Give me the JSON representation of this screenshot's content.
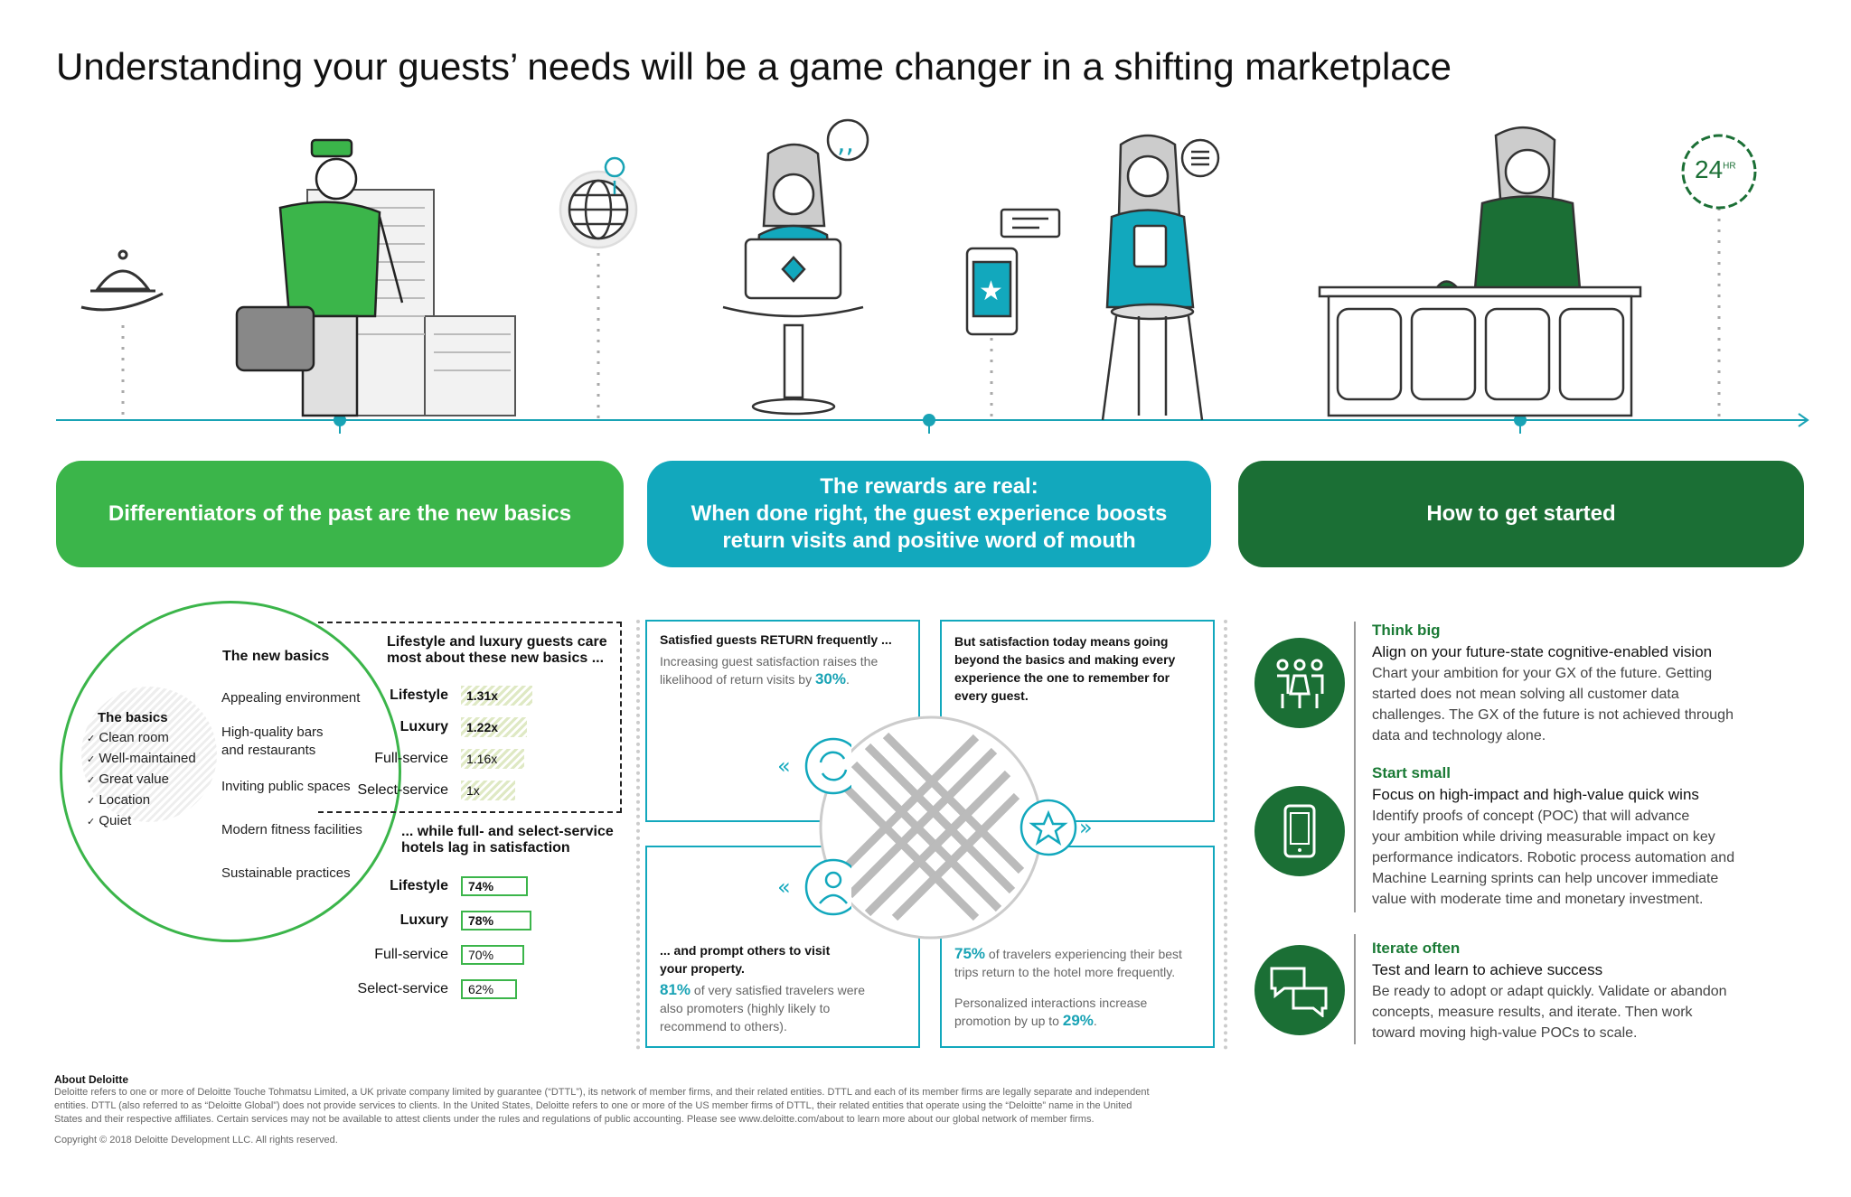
{
  "title": "Understanding your guests’ needs will be a game changer in a shifting marketplace",
  "clock_label": "24",
  "clock_sup": "HR",
  "bands": {
    "left": "Differentiators of the past are the new basics",
    "middle_1": "The rewards are real:",
    "middle_2": "When done right, the guest experience boosts",
    "middle_3": "return visits and positive word of mouth",
    "right": "How to get started"
  },
  "basics": {
    "new_basics_title": "The new basics",
    "new_basics": [
      "Appealing environment",
      "High-quality bars",
      "and restaurants",
      "Inviting public spaces",
      "Modern fitness facilities",
      "Sustainable practices"
    ],
    "basics_title": "The basics",
    "basics": [
      "Clean room",
      "Well-maintained",
      "Great value",
      "Location",
      "Quiet"
    ],
    "check": "✓"
  },
  "care": {
    "title_1": "Lifestyle and luxury guests care",
    "title_2": "most about these new basics ...",
    "rows": [
      {
        "label": "Lifestyle",
        "value": "1.31x",
        "num": 1.31
      },
      {
        "label": "Luxury",
        "value": "1.22x",
        "num": 1.22
      },
      {
        "label": "Full-service",
        "value": "1.16x",
        "num": 1.16
      },
      {
        "label": "Select-service",
        "value": "1x",
        "num": 1.0
      }
    ]
  },
  "lag": {
    "title_1": "... while full- and select-service",
    "title_2": "hotels lag in satisfaction",
    "rows": [
      {
        "label": "Lifestyle",
        "value": "74%",
        "num": 74
      },
      {
        "label": "Luxury",
        "value": "78%",
        "num": 78
      },
      {
        "label": "Full-service",
        "value": "70%",
        "num": 70
      },
      {
        "label": "Select-service",
        "value": "62%",
        "num": 62
      }
    ]
  },
  "rewards": {
    "box1_title": "Satisfied guests RETURN frequently ...",
    "box1_text_1": "Increasing guest satisfaction raises the",
    "box1_text_2": "likelihood of return visits by",
    "box1_pct": "30%",
    "box2_title_1": "But satisfaction today means going",
    "box2_title_2": "beyond the basics and making every",
    "box2_title_3": "experience the one to remember for",
    "box2_title_4": "every guest.",
    "box3_title_1": "... and prompt others to visit",
    "box3_title_2": "your property.",
    "box3_pct": "81%",
    "box3_text_1": "of very satisfied travelers were",
    "box3_text_2": "also promoters (highly likely to",
    "box3_text_3": "recommend to others).",
    "box4_pct": "75%",
    "box4_text_1": "of travelers experiencing their best",
    "box4_text_2": "trips return to the hotel more frequently.",
    "box4_text_3": "Personalized interactions increase",
    "box4_text_4": "promotion by up to",
    "box4_pct2": "29%"
  },
  "start": [
    {
      "head": "Think big",
      "sub": "Align on your future-state cognitive-enabled vision",
      "lines": [
        "Chart your ambition for your GX of the future. Getting",
        "started does not mean solving all customer data",
        "challenges. The GX of the future is not achieved through",
        "data and technology alone."
      ]
    },
    {
      "head": "Start small",
      "sub": "Focus on high-impact and high-value quick wins",
      "lines": [
        "Identify proofs of concept (POC) that will advance",
        "your ambition while driving measurable impact on key",
        "performance indicators. Robotic process automation and",
        "Machine Learning sprints can help uncover immediate",
        "value with moderate time and monetary investment."
      ]
    },
    {
      "head": "Iterate often",
      "sub": "Test and learn to achieve success",
      "lines": [
        "Be ready to adopt or adapt quickly. Validate or abandon",
        "concepts, measure results, and iterate. Then work",
        "toward moving high-value POCs to scale."
      ]
    }
  ],
  "footer": {
    "head": "About Deloitte",
    "lines": [
      "Deloitte refers to one or more of Deloitte Touche Tohmatsu Limited, a UK private company limited by guarantee (“DTTL”), its network of member firms, and their related entities. DTTL and each of its member firms are legally separate and independent",
      "entities. DTTL (also referred to as “Deloitte Global”) does not provide services to clients. In the United States, Deloitte refers to one or more of the US member firms of DTTL, their related entities that operate using the “Deloitte” name in the United",
      "States and their respective affiliates. Certain services may not be available to attest clients under the rules and regulations of public accounting. Please see www.deloitte.com/about to learn more about our global network of member firms."
    ],
    "copyright": "Copyright © 2018 Deloitte Development LLC. All rights reserved."
  },
  "colors": {
    "green": "#3bb54a",
    "teal": "#12a8bd",
    "dark_green": "#1b6f35",
    "line_teal": "#19a3b5"
  }
}
